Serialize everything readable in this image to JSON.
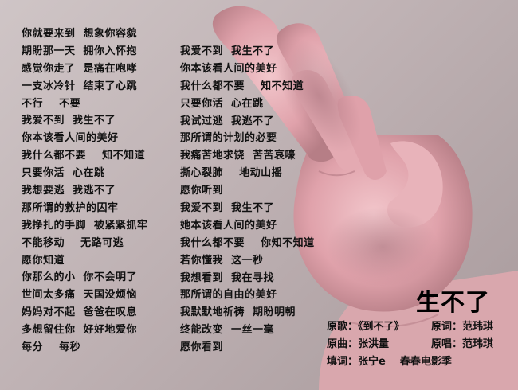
{
  "title": "生不了",
  "lyrics_left": [
    "你就要来到  想象你容貌",
    "期盼那一天  拥你入怀抱",
    "感觉你走了  是痛在咆哮",
    "一支冰冷针  结束了心跳",
    "不行    不要",
    "我爱不到  我生不了",
    "你本该看人间的美好",
    "我什么都不要    知不知道",
    "只要你活  心在跳",
    "我想要逃  我逃不了",
    "那所谓的救护的囚牢",
    "我挣扎的手脚  被紧紧抓牢",
    "不能移动    无路可逃",
    "愿你知道",
    "你那么的小  你不会明了",
    "世间太多痛  天国没烦恼",
    "妈妈对不起  爸爸在叹息",
    "多想留住你  好好地爱你",
    "每分    每秒"
  ],
  "lyrics_right": [
    "我爱不到  我生不了",
    "你本该看人间的美好",
    "我什么都不要    知不知道",
    "只要你活  心在跳",
    "我试过逃  我逃不了",
    "那所谓的计划的必要",
    "我痛苦地求饶  苦苦哀嚎",
    "撕心裂肺    地动山摇",
    "愿你听到",
    "我爱不到  我生不了",
    "她本该看人间的美好",
    "我什么都不要    你知不知道",
    "若你懂我  这一秒",
    "我想看到  我在寻找",
    "那所谓的自由的美好",
    "我默默地祈祷  期盼明朝",
    "终能改变  一丝一毫",
    "愿你看到"
  ],
  "credits": {
    "original_song": "原歌：《到不了》",
    "original_lyrics": "原词：范玮琪",
    "composer": "原曲：张洪量",
    "original_singer": "原唱：范玮琪",
    "lyricist": "填词：张宁e    春春电影季"
  }
}
